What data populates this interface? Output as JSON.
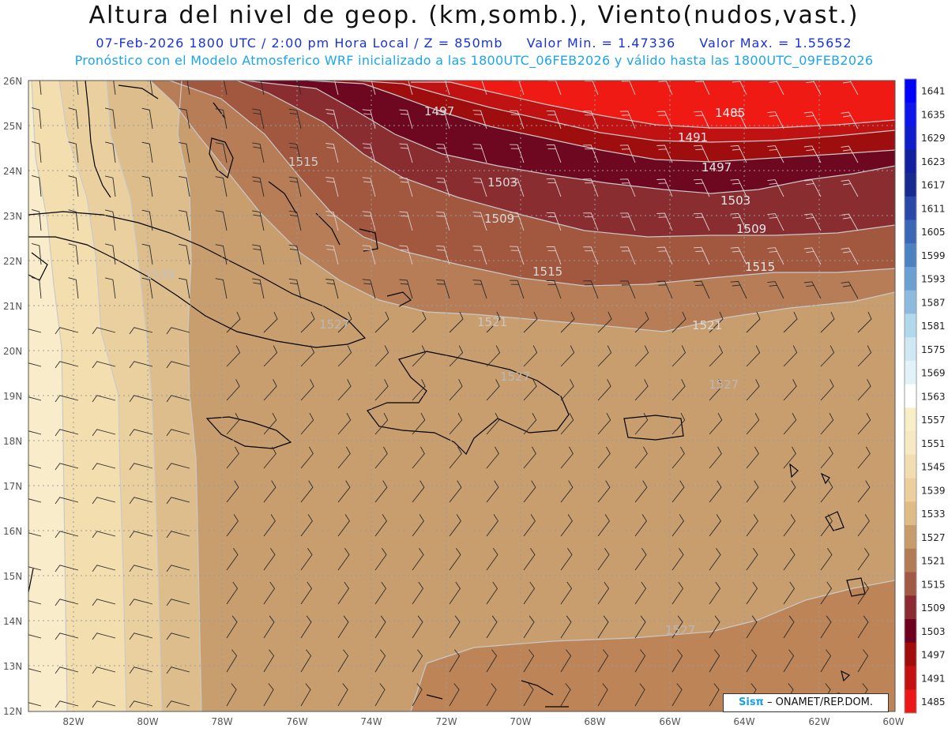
{
  "header": {
    "title": "Altura del nivel de geop. (km,somb.), Viento(nudos,vast.)",
    "date_line": "07-Feb-2026  1800 UTC / 2:00 pm Hora Local / Z = 850mb",
    "min_label": "Valor Min. = 1.47336",
    "max_label": "Valor Max. = 1.55652",
    "model_line": "Pronóstico con el Modelo Atmosferico WRF inicializado a las 1800UTC_06FEB2026 y válido hasta las  1800UTC_09FEB2026"
  },
  "map": {
    "lat_labels": [
      "26N",
      "25N",
      "24N",
      "23N",
      "22N",
      "21N",
      "20N",
      "19N",
      "18N",
      "17N",
      "16N",
      "15N",
      "14N",
      "13N",
      "12N"
    ],
    "lon_labels": [
      "82W",
      "80W",
      "78W",
      "76W",
      "74W",
      "72W",
      "70W",
      "68W",
      "66W",
      "64W",
      "62W",
      "60W"
    ],
    "contour_labels": [
      "1485",
      "1491",
      "1497",
      "1497",
      "1503",
      "1503",
      "1509",
      "1509",
      "1515",
      "1515",
      "1515",
      "1521",
      "1521",
      "1527",
      "1527",
      "1527",
      "1527",
      "1539"
    ]
  },
  "colorbar": {
    "labels": [
      "1641",
      "1635",
      "1629",
      "1623",
      "1617",
      "1611",
      "1605",
      "1599",
      "1593",
      "1587",
      "1581",
      "1575",
      "1569",
      "1563",
      "1557",
      "1551",
      "1545",
      "1539",
      "1533",
      "1527",
      "1521",
      "1515",
      "1509",
      "1503",
      "1497",
      "1491",
      "1485"
    ],
    "colors": [
      "#0000ff",
      "#0c15ea",
      "#0e1dc9",
      "#12209f",
      "#172a8f",
      "#2a48a8",
      "#3a68b4",
      "#4d82c2",
      "#6aa0d2",
      "#8dbbe0",
      "#b2d8ec",
      "#cfe8f3",
      "#e1f3f8",
      "#ffffff",
      "#f9efc6",
      "#f7e9c1",
      "#f2ddb0",
      "#eccf9c",
      "#dfbb86",
      "#c79b6a",
      "#b37c55",
      "#a15a44",
      "#8c2a33",
      "#6e0020",
      "#a10d0d",
      "#c41010",
      "#ec1717"
    ]
  },
  "credit": {
    "brand": "Sisπ",
    "text": " – ONAMET/REP.DOM."
  }
}
